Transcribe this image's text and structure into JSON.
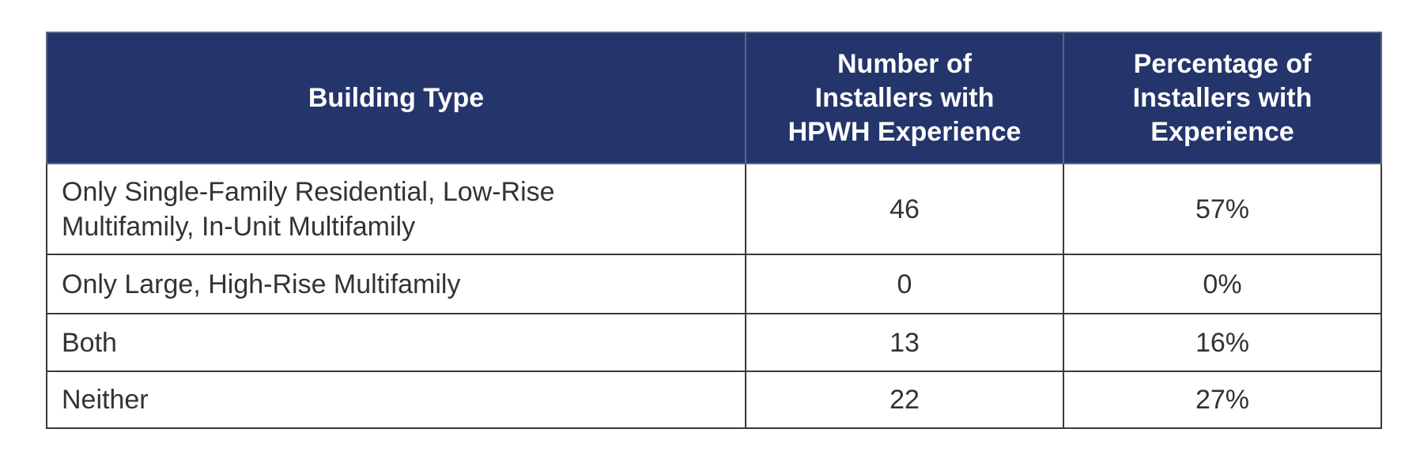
{
  "table": {
    "columns": [
      [
        "Building Type"
      ],
      [
        "Number of",
        "Installers with",
        "HPWH Experience"
      ],
      [
        "Percentage of",
        "Installers with",
        "Experience"
      ]
    ],
    "rows": [
      [
        "Only Single-Family Residential, Low-Rise Multifamily, In-Unit Multifamily",
        "46",
        "57%"
      ],
      [
        "Only Large, High-Rise Multifamily",
        "0",
        "0%"
      ],
      [
        "Both",
        "13",
        "16%"
      ],
      [
        "Neither",
        "22",
        "27%"
      ]
    ]
  }
}
